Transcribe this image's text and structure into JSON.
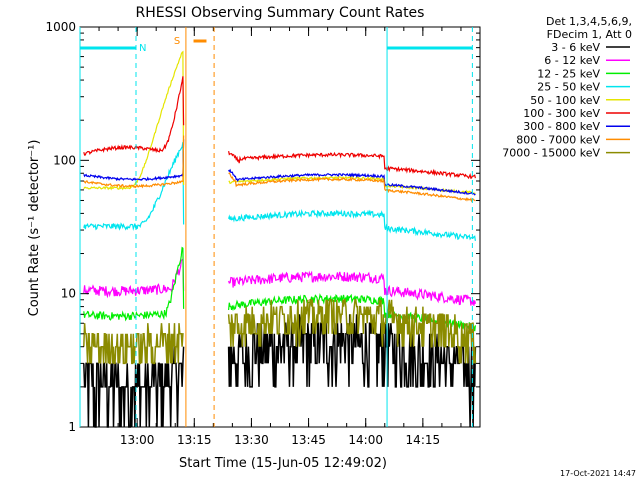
{
  "chart_data": {
    "type": "line",
    "title": "RHESSI Observing Summary Count Rates",
    "ylabel": "Count Rate (s⁻¹ detector⁻¹)",
    "xlabel": "Start Time (15-Jun-05 12:49:02)",
    "yscale": "log",
    "ylim": [
      1,
      1000
    ],
    "xlim_minutes_after_1245": [
      0,
      105
    ],
    "x_ticks": [
      {
        "label": "13:00",
        "t": 15
      },
      {
        "label": "13:15",
        "t": 30
      },
      {
        "label": "13:30",
        "t": 45
      },
      {
        "label": "13:45",
        "t": 60
      },
      {
        "label": "14:00",
        "t": 75
      },
      {
        "label": "14:15",
        "t": 90
      }
    ],
    "y_ticks": [
      {
        "label": "1",
        "v": 1
      },
      {
        "label": "10",
        "v": 10
      },
      {
        "label": "100",
        "v": 100
      },
      {
        "label": "1000",
        "v": 1000
      }
    ],
    "legend_header": [
      "Det 1,3,4,5,6,9,",
      "FDecim 1, Att 0"
    ],
    "legend_position": "right",
    "series": [
      {
        "name": "3 - 6 keV",
        "color": "#000000"
      },
      {
        "name": "6 - 12 keV",
        "color": "#ff00ff"
      },
      {
        "name": "12 - 25 keV",
        "color": "#00ee00"
      },
      {
        "name": "25 - 50 keV",
        "color": "#00e5ee"
      },
      {
        "name": "50 - 100 keV",
        "color": "#e5e500"
      },
      {
        "name": "100 - 300 keV",
        "color": "#ee0000"
      },
      {
        "name": "300 - 800 keV",
        "color": "#0000ee"
      },
      {
        "name": "800 - 7000 keV",
        "color": "#ff8c00"
      },
      {
        "name": "7000 - 15000 keV",
        "color": "#8b8b00"
      }
    ],
    "night_marker": "N",
    "saa_marker": "S",
    "night_intervals": [
      [
        0,
        14.7
      ],
      [
        80.6,
        103
      ]
    ],
    "saa_interval": [
      29.8,
      33.2
    ],
    "saa_bounds": [
      27.8,
      35.2
    ],
    "data_gap": [
      27.8,
      38.8
    ],
    "footer_timestamp": "17-Oct-2021 14:47"
  }
}
